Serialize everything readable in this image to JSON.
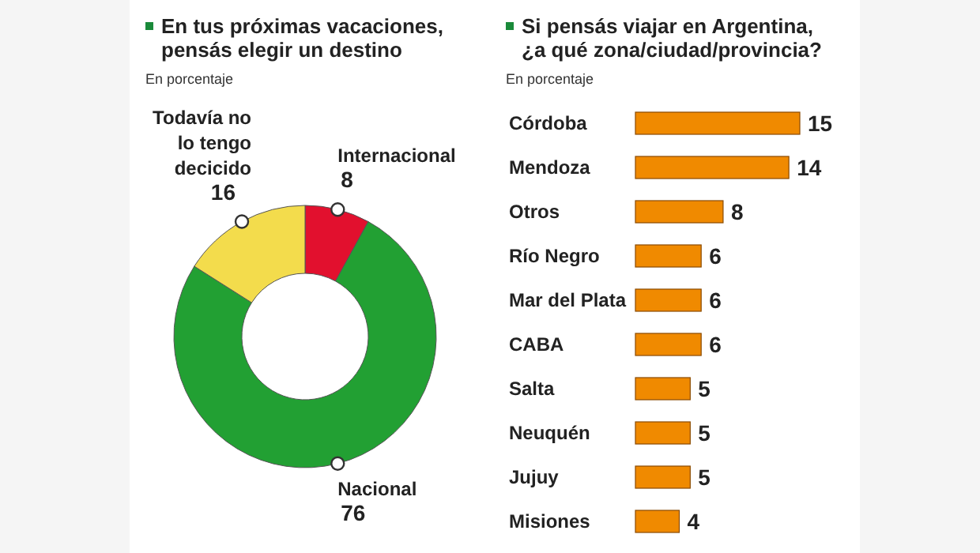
{
  "chart_data": [
    {
      "type": "donut",
      "title": "En tus próximas vacaciones, pensás elegir un destino",
      "subtitle": "En porcentaje",
      "categories": [
        "Internacional",
        "Nacional",
        "Todavía no lo tengo decicido"
      ],
      "values": [
        8,
        76,
        16
      ],
      "colors": [
        "#e2102e",
        "#22a033",
        "#f3dc4c"
      ],
      "data_labels": true
    },
    {
      "type": "bar",
      "orientation": "horizontal",
      "title": "Si pensás viajar en Argentina, ¿a qué zona/ciudad/provincia?",
      "subtitle": "En porcentaje",
      "categories": [
        "Córdoba",
        "Mendoza",
        "Otros",
        "Río Negro",
        "Mar del Plata",
        "CABA",
        "Salta",
        "Neuquén",
        "Jujuy",
        "Misiones"
      ],
      "values": [
        15,
        14,
        8,
        6,
        6,
        6,
        5,
        5,
        5,
        4
      ],
      "color": "#f08a00",
      "data_labels": true,
      "tick_labels": "y",
      "grid": false
    }
  ]
}
